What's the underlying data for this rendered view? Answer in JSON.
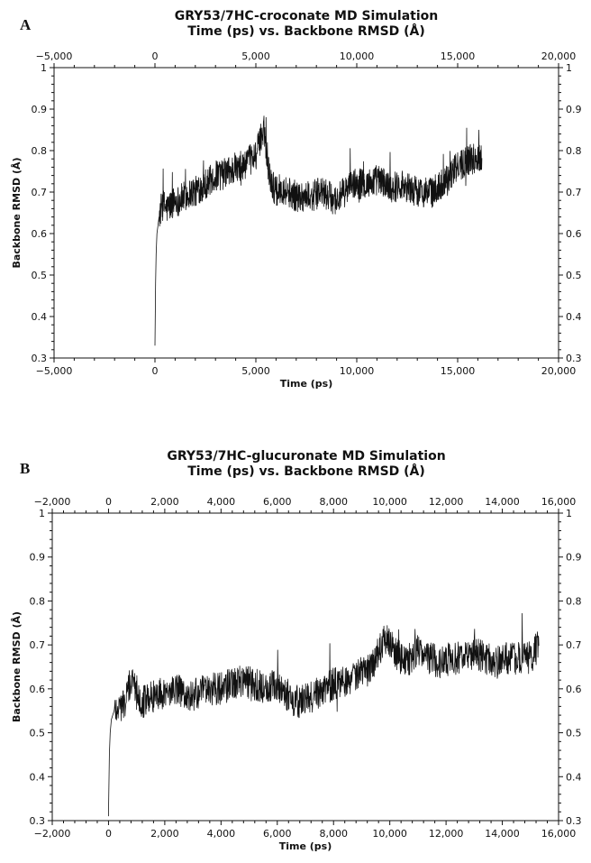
{
  "chart_data": [
    {
      "type": "line",
      "panel_label": "A",
      "title_line1": "GRY53/7HC-croconate MD Simulation",
      "title_line2": "Time (ps) vs. Backbone RMSD (Å)",
      "xlabel": "Time (ps)",
      "ylabel": "Backbone RMSD (Å)",
      "xlim": [
        -5000,
        20000
      ],
      "ylim": [
        0.3,
        1.0
      ],
      "xticks": [
        -5000,
        0,
        5000,
        10000,
        15000,
        20000
      ],
      "xtick_labels": [
        "−5,000",
        "0",
        "5,000",
        "10,000",
        "15,000",
        "20,000"
      ],
      "yticks": [
        0.3,
        0.4,
        0.5,
        0.6,
        0.7,
        0.8,
        0.9,
        1.0
      ],
      "ytick_labels": [
        "0.3",
        "0.4",
        "0.5",
        "0.6",
        "0.7",
        "0.8",
        "0.9",
        "1"
      ],
      "grid": false,
      "line_color": "#111111",
      "x": [
        0,
        30,
        60,
        100,
        150,
        200,
        300,
        400,
        600,
        800,
        1000,
        1200,
        1500,
        1800,
        2000,
        2200,
        2500,
        2800,
        3000,
        3300,
        3600,
        3800,
        4000,
        4200,
        4500,
        4800,
        5000,
        5200,
        5400,
        5600,
        5800,
        6000,
        6300,
        6600,
        7000,
        7400,
        7800,
        8200,
        8600,
        9000,
        9400,
        9800,
        10200,
        10600,
        11000,
        11400,
        11800,
        12200,
        12600,
        13000,
        13400,
        13800,
        14200,
        14600,
        15000,
        15300,
        15600,
        15900,
        16200
      ],
      "y": [
        0.33,
        0.48,
        0.55,
        0.6,
        0.62,
        0.64,
        0.66,
        0.67,
        0.66,
        0.67,
        0.68,
        0.68,
        0.69,
        0.7,
        0.7,
        0.71,
        0.72,
        0.73,
        0.74,
        0.74,
        0.75,
        0.75,
        0.76,
        0.75,
        0.77,
        0.78,
        0.79,
        0.82,
        0.86,
        0.76,
        0.72,
        0.7,
        0.71,
        0.7,
        0.69,
        0.69,
        0.69,
        0.7,
        0.69,
        0.68,
        0.7,
        0.72,
        0.72,
        0.72,
        0.73,
        0.72,
        0.71,
        0.72,
        0.71,
        0.7,
        0.7,
        0.7,
        0.72,
        0.74,
        0.76,
        0.77,
        0.78,
        0.78,
        0.79
      ]
    },
    {
      "type": "line",
      "panel_label": "B",
      "title_line1": "GRY53/7HC-glucuronate MD Simulation",
      "title_line2": "Time (ps) vs. Backbone RMSD (Å)",
      "xlabel": "Time (ps)",
      "ylabel": "Backbone RMSD (Å)",
      "xlim": [
        -2000,
        16000
      ],
      "ylim": [
        0.3,
        1.0
      ],
      "xticks": [
        -2000,
        0,
        2000,
        4000,
        6000,
        8000,
        10000,
        12000,
        14000,
        16000
      ],
      "xtick_labels": [
        "−2,000",
        "0",
        "2,000",
        "4,000",
        "6,000",
        "8,000",
        "10,000",
        "12,000",
        "14,000",
        "16,000"
      ],
      "yticks": [
        0.3,
        0.4,
        0.5,
        0.6,
        0.7,
        0.8,
        0.9,
        1.0
      ],
      "ytick_labels": [
        "0.3",
        "0.4",
        "0.5",
        "0.6",
        "0.7",
        "0.8",
        "0.9",
        "1"
      ],
      "grid": false,
      "line_color": "#111111",
      "x": [
        0,
        30,
        60,
        100,
        150,
        200,
        300,
        400,
        600,
        800,
        1000,
        1200,
        1500,
        1800,
        2000,
        2400,
        2800,
        3200,
        3600,
        4000,
        4400,
        4800,
        5200,
        5600,
        6000,
        6400,
        6800,
        7200,
        7600,
        8000,
        8400,
        8800,
        9200,
        9600,
        9800,
        10000,
        10200,
        10600,
        11000,
        11400,
        11800,
        12200,
        12600,
        13000,
        13400,
        13800,
        14200,
        14600,
        15000,
        15300
      ],
      "y": [
        0.31,
        0.45,
        0.5,
        0.53,
        0.54,
        0.55,
        0.56,
        0.56,
        0.57,
        0.62,
        0.6,
        0.57,
        0.58,
        0.59,
        0.59,
        0.6,
        0.58,
        0.59,
        0.6,
        0.6,
        0.61,
        0.62,
        0.61,
        0.6,
        0.61,
        0.58,
        0.57,
        0.58,
        0.6,
        0.61,
        0.62,
        0.63,
        0.64,
        0.68,
        0.72,
        0.7,
        0.68,
        0.66,
        0.69,
        0.67,
        0.66,
        0.67,
        0.67,
        0.68,
        0.67,
        0.66,
        0.67,
        0.67,
        0.67,
        0.7
      ]
    }
  ]
}
